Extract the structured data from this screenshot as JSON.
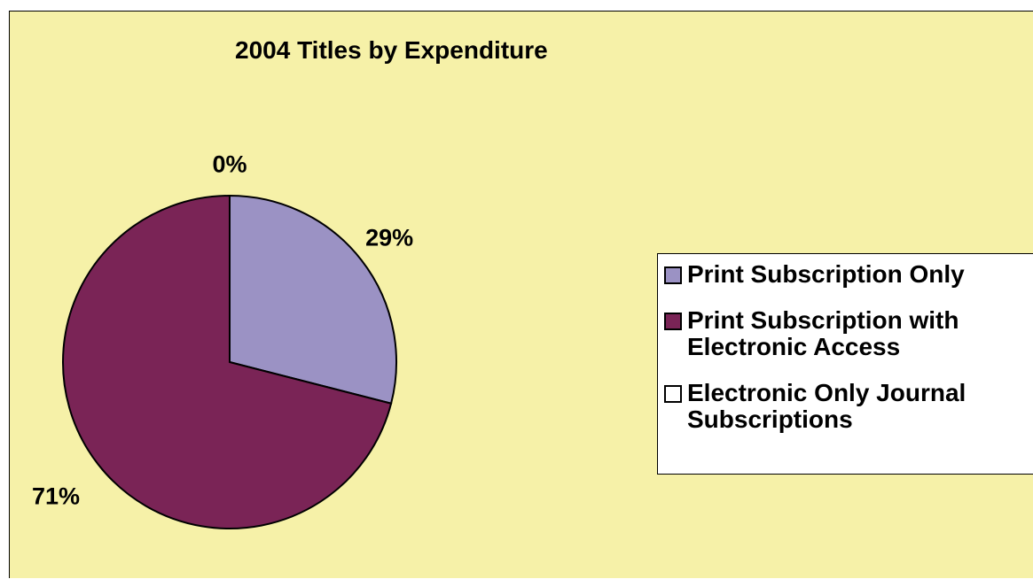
{
  "chart_data": {
    "type": "pie",
    "title": "2004 Titles by Expenditure",
    "categories": [
      "Print Subscription Only",
      "Print Subscription with Electronic Access",
      "Electronic Only Journal Subscriptions"
    ],
    "values": [
      29,
      71,
      0
    ],
    "data_labels": [
      "29%",
      "71%",
      "0%"
    ],
    "colors": [
      "#9b92c4",
      "#7a2456",
      "#ffffff"
    ],
    "legend_placement": "right"
  },
  "background_color": "#f6f1a8"
}
